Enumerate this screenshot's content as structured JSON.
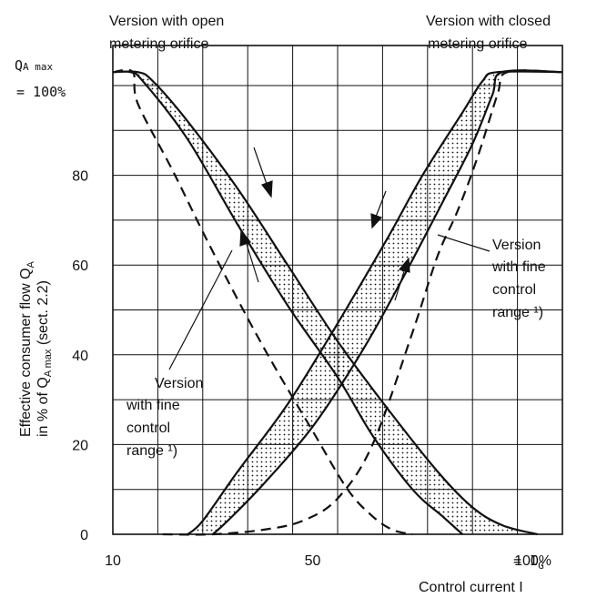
{
  "chart_data": {
    "type": "line",
    "xlabel": "Control current I",
    "ylabel_line1": "Effective consumer flow Q",
    "ylabel_line1_sub": "A",
    "ylabel_line2_a": "in % of Q",
    "ylabel_line2_sub": "A max",
    "ylabel_line2_b": " (sect. 2.2)",
    "x_ticks": [
      {
        "value": 10,
        "label": "10"
      },
      {
        "value": 50,
        "label": "50"
      },
      {
        "value": 100,
        "label": "100%"
      }
    ],
    "x_end_suffix": " = I",
    "x_end_sub": "G",
    "y_ticks": [
      {
        "value": 0,
        "label": "0"
      },
      {
        "value": 20,
        "label": "20"
      },
      {
        "value": 40,
        "label": "40"
      },
      {
        "value": 60,
        "label": "60"
      },
      {
        "value": 80,
        "label": "80"
      }
    ],
    "y_top_label_q": "Q",
    "y_top_label_sub": "A max",
    "y_top_label_value": "= 100%",
    "xlim": [
      10,
      100
    ],
    "ylim": [
      0,
      104
    ],
    "grid": true,
    "annotations": {
      "open_title": [
        "Version with open",
        "metering orifice"
      ],
      "closed_title": [
        "Version with closed",
        "metering orifice"
      ],
      "fine_left": [
        "Version",
        "with fine",
        "control",
        "range ¹)"
      ],
      "fine_right": [
        "Version",
        "with fine",
        "control",
        "range ¹)"
      ]
    },
    "series": [
      {
        "group": "open-band-upper",
        "style": "solid",
        "points": [
          [
            10,
            103
          ],
          [
            15,
            103
          ],
          [
            18,
            101
          ],
          [
            25,
            92
          ],
          [
            35,
            77
          ],
          [
            45,
            60
          ],
          [
            55,
            43
          ],
          [
            65,
            28
          ],
          [
            75,
            14
          ],
          [
            82,
            6
          ],
          [
            88,
            2
          ],
          [
            95,
            0
          ]
        ]
      },
      {
        "group": "open-band-lower",
        "style": "solid",
        "points": [
          [
            10,
            103
          ],
          [
            13.5,
            103
          ],
          [
            16,
            101
          ],
          [
            25,
            88
          ],
          [
            35,
            69
          ],
          [
            45,
            51
          ],
          [
            55,
            35
          ],
          [
            62,
            22
          ],
          [
            70,
            10
          ],
          [
            76,
            4
          ],
          [
            80,
            0
          ]
        ]
      },
      {
        "group": "open-fine",
        "style": "dashed",
        "points": [
          [
            10,
            103
          ],
          [
            14,
            103
          ],
          [
            15,
            96
          ],
          [
            22,
            81
          ],
          [
            30,
            63
          ],
          [
            40,
            42
          ],
          [
            50,
            23
          ],
          [
            57,
            10
          ],
          [
            62,
            4
          ],
          [
            66,
            1
          ],
          [
            70,
            0
          ]
        ]
      },
      {
        "group": "closed-band-upper",
        "style": "solid",
        "points": [
          [
            25,
            0
          ],
          [
            28,
            3
          ],
          [
            35,
            14
          ],
          [
            45,
            29
          ],
          [
            55,
            47
          ],
          [
            65,
            66
          ],
          [
            72,
            80
          ],
          [
            80,
            94
          ],
          [
            84,
            101
          ],
          [
            87,
            103
          ],
          [
            100,
            103
          ]
        ]
      },
      {
        "group": "closed-band-lower",
        "style": "solid",
        "points": [
          [
            30,
            0
          ],
          [
            33,
            3
          ],
          [
            40,
            11
          ],
          [
            50,
            24
          ],
          [
            60,
            41
          ],
          [
            68,
            57
          ],
          [
            76,
            74
          ],
          [
            82,
            87
          ],
          [
            86,
            98
          ],
          [
            88,
            103
          ],
          [
            100,
            103
          ]
        ]
      },
      {
        "group": "closed-fine",
        "style": "dashed",
        "points": [
          [
            20,
            0
          ],
          [
            30,
            0
          ],
          [
            40,
            1
          ],
          [
            48,
            3
          ],
          [
            55,
            8
          ],
          [
            62,
            20
          ],
          [
            70,
            45
          ],
          [
            75,
            62
          ],
          [
            79,
            72
          ],
          [
            83,
            84
          ],
          [
            87,
            98
          ],
          [
            89,
            103
          ],
          [
            100,
            103
          ]
        ]
      }
    ]
  }
}
